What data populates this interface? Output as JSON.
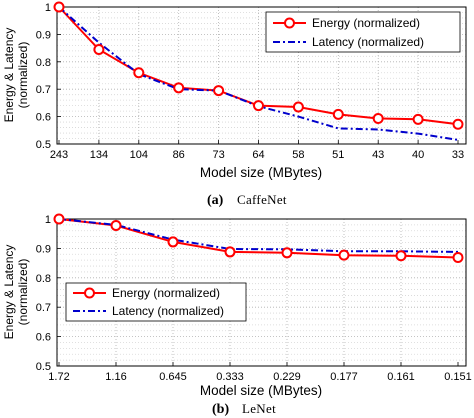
{
  "chart_data": [
    {
      "type": "line",
      "categories": [
        "243",
        "134",
        "104",
        "86",
        "73",
        "64",
        "58",
        "51",
        "43",
        "40",
        "33"
      ],
      "series": [
        {
          "name": "Energy (normalized)",
          "values": [
            1.0,
            0.845,
            0.76,
            0.705,
            0.695,
            0.64,
            0.635,
            0.608,
            0.593,
            0.59,
            0.572
          ],
          "color": "#ff0000",
          "style": "solid",
          "marker": "circle"
        },
        {
          "name": "Latency (normalized)",
          "values": [
            1.0,
            0.87,
            0.755,
            0.7,
            0.695,
            0.638,
            0.6,
            0.557,
            0.553,
            0.538,
            0.515
          ],
          "color": "#0000cc",
          "style": "dashdot",
          "marker": "none"
        }
      ],
      "yticks": [
        "0.5",
        "0.6",
        "0.7",
        "0.8",
        "0.9",
        "1"
      ],
      "ylim": [
        0.5,
        1.0
      ],
      "xlabel": "Model size (MBytes)",
      "ylabel_lines": [
        "Energy & Latency",
        "(normalized)"
      ],
      "caption_letter": "(a)",
      "caption_name": "CaffeNet",
      "legend": "top-right",
      "grid": "dotted"
    },
    {
      "type": "line",
      "categories": [
        "1.72",
        "1.16",
        "0.645",
        "0.333",
        "0.229",
        "0.177",
        "0.161",
        "0.151"
      ],
      "series": [
        {
          "name": "Energy (normalized)",
          "values": [
            1.0,
            0.978,
            0.922,
            0.888,
            0.885,
            0.877,
            0.875,
            0.869
          ],
          "color": "#ff0000",
          "style": "solid",
          "marker": "circle"
        },
        {
          "name": "Latency (normalized)",
          "values": [
            1.0,
            0.98,
            0.93,
            0.898,
            0.897,
            0.89,
            0.89,
            0.888
          ],
          "color": "#0000cc",
          "style": "dashdot",
          "marker": "none"
        }
      ],
      "yticks": [
        "0.5",
        "0.6",
        "0.7",
        "0.8",
        "0.9",
        "1"
      ],
      "ylim": [
        0.5,
        1.0
      ],
      "xlabel": "Model size (MBytes)",
      "ylabel_lines": [
        "Energy & Latency",
        "(normalized)"
      ],
      "caption_letter": "(b)",
      "caption_name": "LeNet",
      "legend": "middle-left",
      "grid": "dotted"
    }
  ]
}
